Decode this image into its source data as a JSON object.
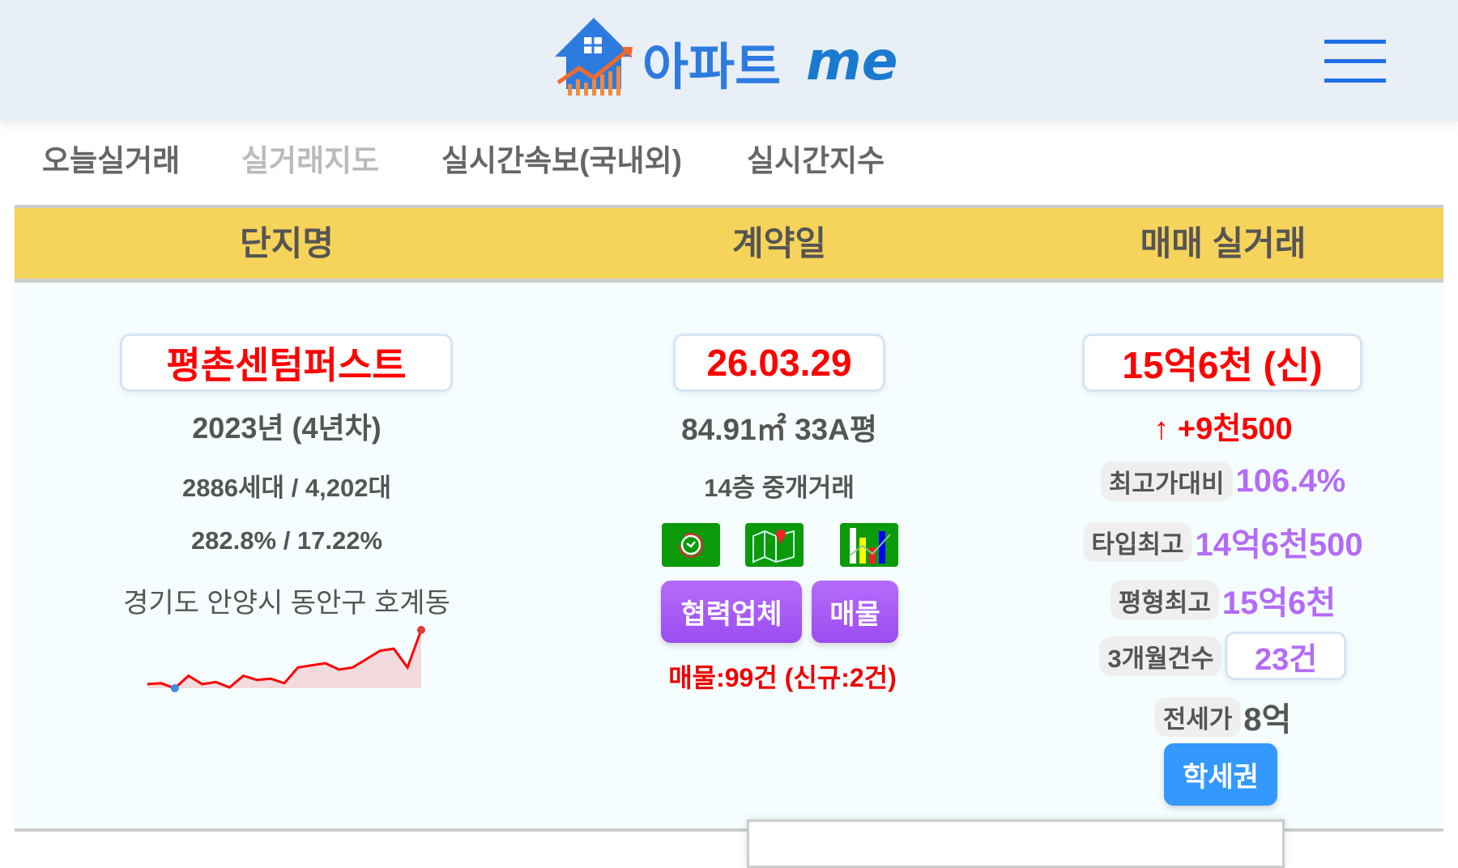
{
  "header": {
    "logo_text": "아파트me",
    "menu_icon": "hamburger-icon"
  },
  "nav": {
    "items": [
      {
        "label": "오늘실거래"
      },
      {
        "label": "실거래지도"
      },
      {
        "label": "실시간속보(국내외)"
      },
      {
        "label": "실시간지수"
      }
    ]
  },
  "table": {
    "headers": [
      "단지명",
      "계약일",
      "매매 실거래"
    ]
  },
  "complex": {
    "name": "평촌센텀퍼스트",
    "year": "2023년 (4년차)",
    "units": "2886세대 / 4,202대",
    "ratio": "282.8% / 17.22%",
    "address": "경기도 안양시 동안구 호계동"
  },
  "contract": {
    "date": "26.03.29",
    "area": "84.91㎡ 33A평",
    "floor": "14층 중개거래",
    "icons": [
      "clock-history-icon",
      "map-pin-icon",
      "bar-chart-icon"
    ],
    "partner_button": "협력업체",
    "listing_button": "매물",
    "listing_count": "매물:99건 (신규:2건)"
  },
  "price": {
    "value": "15억6천 (신)",
    "change": "↑ +9천500",
    "stats": [
      {
        "label": "최고가대비",
        "value": "106.4%"
      },
      {
        "label": "타입최고",
        "value": "14억6천500"
      },
      {
        "label": "평형최고",
        "value": "15억6천"
      },
      {
        "label": "3개월건수",
        "value": "23건"
      },
      {
        "label": "전세가",
        "value": "8억"
      }
    ],
    "school_button": "학세권"
  },
  "sparkline": {
    "values": [
      1,
      1.2,
      0,
      3,
      1,
      1.5,
      0.2,
      3,
      2,
      2.3,
      1.2,
      5,
      5.5,
      6,
      4.5,
      5,
      7,
      9,
      9.5,
      5,
      14
    ],
    "line_color": "#ff0000",
    "min_marker_color": "#3a8ee6",
    "max_marker_color": "#e03a3a"
  },
  "colors": {
    "accent_red": "#ff0000",
    "purple": "#b36cf7",
    "header_yellow": "#f6d35a",
    "school_blue": "#3399ff"
  }
}
